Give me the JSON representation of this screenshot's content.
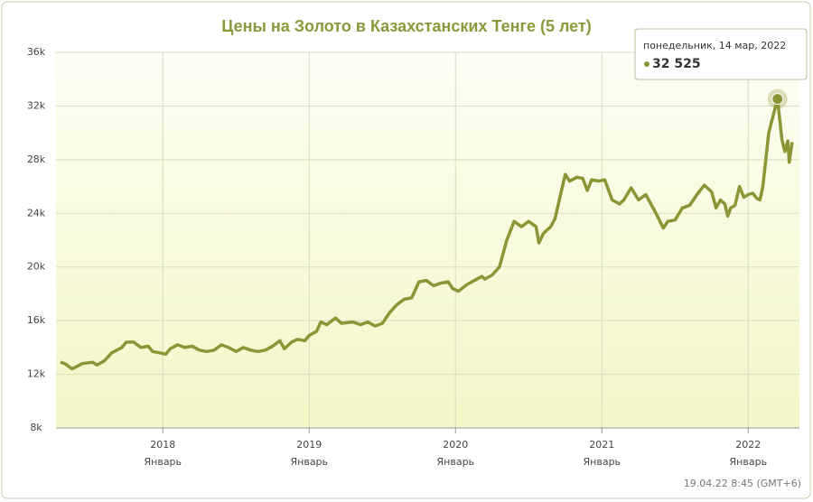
{
  "chart_data": {
    "type": "line",
    "title": "Цены на Золото в Казахстанских Тенге (5 лет)",
    "x": [
      2017.3,
      2017.33,
      2017.38,
      2017.45,
      2017.52,
      2017.55,
      2017.6,
      2017.65,
      2017.72,
      2017.75,
      2017.8,
      2017.85,
      2017.9,
      2017.93,
      2017.98,
      2018.02,
      2018.05,
      2018.1,
      2018.15,
      2018.2,
      2018.25,
      2018.3,
      2018.35,
      2018.4,
      2018.45,
      2018.5,
      2018.55,
      2018.6,
      2018.65,
      2018.7,
      2018.75,
      2018.8,
      2018.83,
      2018.88,
      2018.92,
      2018.97,
      2019.0,
      2019.05,
      2019.08,
      2019.12,
      2019.18,
      2019.22,
      2019.3,
      2019.35,
      2019.4,
      2019.45,
      2019.5,
      2019.55,
      2019.6,
      2019.65,
      2019.7,
      2019.75,
      2019.8,
      2019.85,
      2019.9,
      2019.95,
      2019.98,
      2020.02,
      2020.08,
      2020.13,
      2020.18,
      2020.2,
      2020.25,
      2020.3,
      2020.35,
      2020.4,
      2020.45,
      2020.5,
      2020.55,
      2020.57,
      2020.6,
      2020.65,
      2020.68,
      2020.72,
      2020.75,
      2020.78,
      2020.83,
      2020.87,
      2020.9,
      2020.93,
      2020.98,
      2021.02,
      2021.07,
      2021.12,
      2021.15,
      2021.2,
      2021.25,
      2021.3,
      2021.37,
      2021.42,
      2021.45,
      2021.5,
      2021.55,
      2021.6,
      2021.65,
      2021.7,
      2021.75,
      2021.78,
      2021.81,
      2021.84,
      2021.86,
      2021.88,
      2021.91,
      2021.94,
      2021.97,
      2022.0,
      2022.03,
      2022.06,
      2022.08,
      2022.1,
      2022.14,
      2022.2,
      2022.23,
      2022.25,
      2022.27,
      2022.28,
      2022.3
    ],
    "values": [
      12900,
      12800,
      12400,
      12800,
      12900,
      12700,
      13000,
      13600,
      14000,
      14400,
      14400,
      14000,
      14100,
      13700,
      13600,
      13500,
      13900,
      14200,
      14000,
      14100,
      13800,
      13700,
      13800,
      14200,
      14000,
      13700,
      14000,
      13800,
      13700,
      13800,
      14100,
      14500,
      13900,
      14400,
      14600,
      14500,
      14900,
      15200,
      15900,
      15700,
      16200,
      15800,
      15900,
      15700,
      15900,
      15600,
      15800,
      16600,
      17200,
      17600,
      17700,
      18900,
      19000,
      18600,
      18800,
      18900,
      18400,
      18200,
      18700,
      19000,
      19300,
      19100,
      19400,
      20000,
      22000,
      23400,
      23000,
      23400,
      23000,
      21800,
      22500,
      23000,
      23600,
      25500,
      26900,
      26400,
      26700,
      26600,
      25700,
      26500,
      26400,
      26500,
      25000,
      24700,
      25000,
      25900,
      25000,
      25400,
      24000,
      22900,
      23400,
      23500,
      24400,
      24600,
      25400,
      26100,
      25600,
      24400,
      25000,
      24700,
      23800,
      24400,
      24600,
      26000,
      25200,
      25400,
      25500,
      25100,
      25000,
      26000,
      30000,
      32525,
      29500,
      28600,
      29400,
      27800,
      29300
    ],
    "color": "#8a9636",
    "xlim": [
      2017.27,
      2022.35
    ],
    "xticks": [
      2018,
      2019,
      2020,
      2021,
      2022
    ],
    "xtick_sublabel": "Январь",
    "ylim": [
      8000,
      36000
    ],
    "yticks": [
      {
        "value": 8000,
        "label": "8k"
      },
      {
        "value": 12000,
        "label": "12k"
      },
      {
        "value": 16000,
        "label": "16k"
      },
      {
        "value": 20000,
        "label": "20k"
      },
      {
        "value": 24000,
        "label": "24k"
      },
      {
        "value": 28000,
        "label": "28k"
      },
      {
        "value": 32000,
        "label": "32k"
      },
      {
        "value": 36000,
        "label": "36k"
      }
    ],
    "grid": true,
    "tooltip": {
      "title": "понедельник, 14 мар, 2022",
      "value_label": "32 525"
    },
    "footer": "19.04.22 8:45 (GMT+6)"
  }
}
